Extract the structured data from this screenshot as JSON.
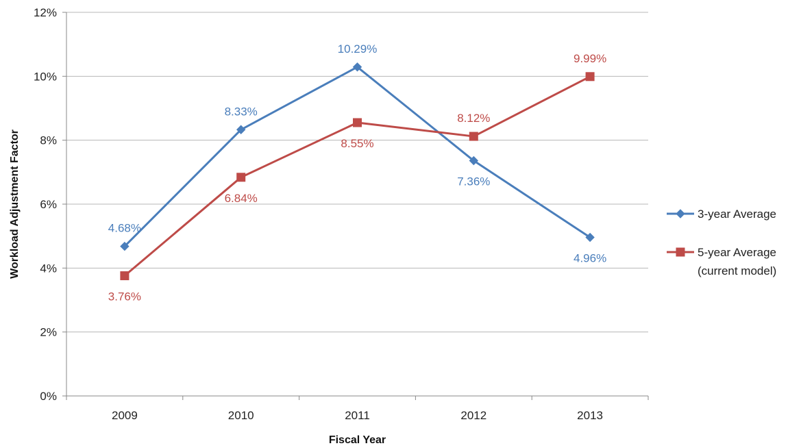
{
  "chart_data": {
    "type": "line",
    "title": "",
    "xlabel": "Fiscal Year",
    "ylabel": "Workload Adjustment Factor",
    "categories": [
      "2009",
      "2010",
      "2011",
      "2012",
      "2013"
    ],
    "ylim": [
      0,
      12
    ],
    "y_ticks": [
      0,
      2,
      4,
      6,
      8,
      10,
      12
    ],
    "y_tick_labels": [
      "0%",
      "2%",
      "4%",
      "6%",
      "8%",
      "10%",
      "12%"
    ],
    "grid": "horizontal",
    "legend_position": "right",
    "series": [
      {
        "name": "3-year Average",
        "name_lines": [
          "3-year Average"
        ],
        "color": "#4a7ebb",
        "marker": "diamond",
        "values": [
          4.68,
          8.33,
          10.29,
          7.36,
          4.96
        ],
        "labels": [
          "4.68%",
          "8.33%",
          "10.29%",
          "7.36%",
          "4.96%"
        ],
        "label_positions": [
          "above",
          "above",
          "above",
          "below",
          "below"
        ]
      },
      {
        "name": "5-year Average (current model)",
        "name_lines": [
          "5-year Average",
          "(current model)"
        ],
        "color": "#be4b48",
        "marker": "square",
        "values": [
          3.76,
          6.84,
          8.55,
          8.12,
          9.99
        ],
        "labels": [
          "3.76%",
          "6.84%",
          "8.55%",
          "8.12%",
          "9.99%"
        ],
        "label_positions": [
          "below",
          "below",
          "below",
          "above",
          "above"
        ]
      }
    ]
  }
}
